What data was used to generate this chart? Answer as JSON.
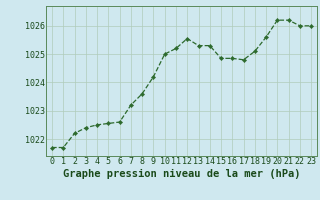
{
  "x": [
    0,
    1,
    2,
    3,
    4,
    5,
    6,
    7,
    8,
    9,
    10,
    11,
    12,
    13,
    14,
    15,
    16,
    17,
    18,
    19,
    20,
    21,
    22,
    23
  ],
  "y": [
    1021.7,
    1021.7,
    1022.2,
    1022.4,
    1022.5,
    1022.55,
    1022.6,
    1023.2,
    1023.6,
    1024.2,
    1025.0,
    1025.2,
    1025.55,
    1025.3,
    1025.3,
    1024.85,
    1024.85,
    1024.8,
    1025.1,
    1025.6,
    1026.2,
    1026.2,
    1026.0,
    1026.0
  ],
  "line_color": "#2d6a2d",
  "marker_color": "#2d6a2d",
  "bg_color": "#cfe8ef",
  "grid_color": "#b0ccbb",
  "title": "Graphe pression niveau de la mer (hPa)",
  "ylim_min": 1021.4,
  "ylim_max": 1026.7,
  "yticks": [
    1022,
    1023,
    1024,
    1025,
    1026
  ],
  "xticks": [
    0,
    1,
    2,
    3,
    4,
    5,
    6,
    7,
    8,
    9,
    10,
    11,
    12,
    13,
    14,
    15,
    16,
    17,
    18,
    19,
    20,
    21,
    22,
    23
  ],
  "title_fontsize": 7.5,
  "tick_fontsize": 6.0,
  "title_color": "#1a4a1a",
  "tick_color": "#1a4a1a",
  "spine_color": "#5a8a5a"
}
